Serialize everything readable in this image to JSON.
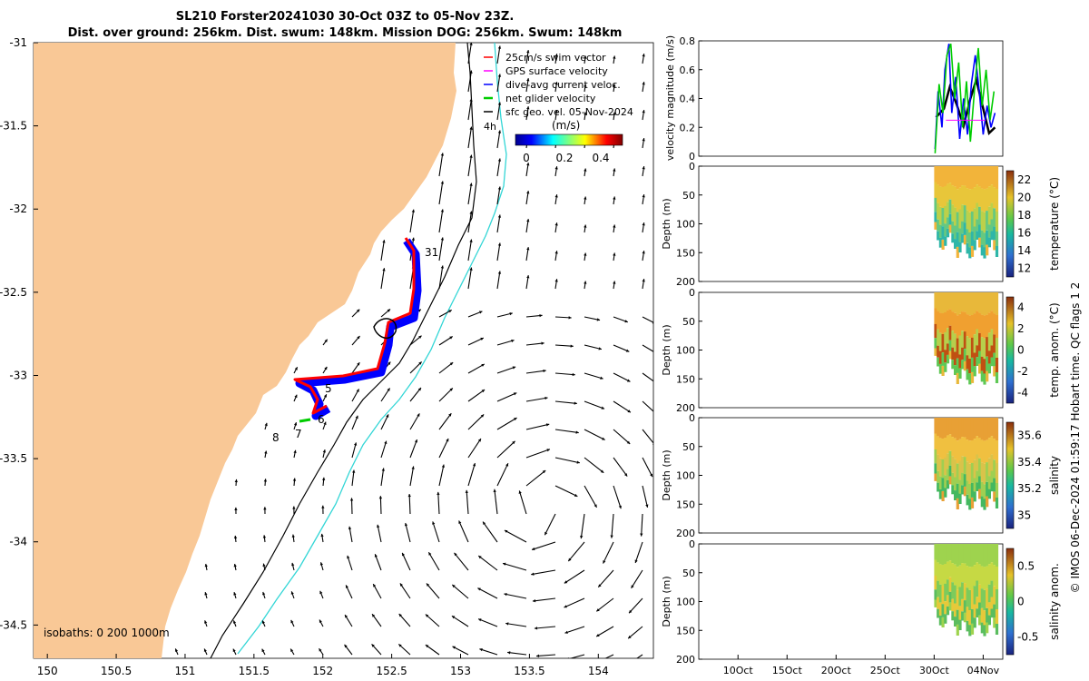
{
  "header": {
    "line1": "SL210 Forster20241030 30-Oct 03Z to 05-Nov 23Z.",
    "line2": "Dist. over ground: 256km. Dist. swum: 148km. Mission DOG: 256km. Swum: 148km"
  },
  "map": {
    "x_ticks": [
      "150",
      "150.5",
      "151",
      "151.5",
      "152",
      "152.5",
      "153",
      "153.5",
      "154"
    ],
    "y_ticks": [
      "-31",
      "-31.5",
      "-32",
      "-32.5",
      "-33",
      "-33.5",
      "-34",
      "-34.5"
    ],
    "xlim": [
      149.9,
      154.4
    ],
    "ylim": [
      -34.7,
      -31
    ],
    "legend": [
      {
        "label": "25cm/s swim vector",
        "color": "#ff0000"
      },
      {
        "label": "GPS surface velocity",
        "color": "#ff00ff"
      },
      {
        "label": "dive-avg current veloc.",
        "color": "#0000ff"
      },
      {
        "label": "net glider velocity",
        "color": "#00cc00"
      },
      {
        "label": "sfc geo. vel. 05-Nov-2024",
        "color": "#000000"
      }
    ],
    "colorbar_label": "(m/s)",
    "colorbar_ticks": [
      "0",
      "0.2",
      "0.4"
    ],
    "isobaths_label": "isobaths: 0   200  1000m",
    "annotations": [
      "4h",
      "31",
      "5",
      "6",
      "7",
      "8"
    ],
    "land_color": "#f9c896",
    "isobath_200_color": "#000000",
    "isobath_1000_color": "#33d6d6"
  },
  "chart_data": [
    {
      "type": "line",
      "title": "",
      "ylabel": "velocity magnitude (m/s)",
      "ylim": [
        0,
        0.8
      ],
      "y_ticks": [
        "0",
        "0.2",
        "0.4",
        "0.6",
        "0.8"
      ],
      "series": [
        {
          "color": "#000000",
          "x": [
            30.2,
            31.0,
            31.6,
            32.3,
            33.0,
            33.7,
            34.3,
            35.0,
            35.6,
            36.2
          ],
          "values": [
            0.27,
            0.33,
            0.48,
            0.36,
            0.21,
            0.4,
            0.53,
            0.33,
            0.16,
            0.2
          ]
        },
        {
          "color": "#0000ff",
          "x": [
            30.1,
            30.4,
            30.8,
            31.1,
            31.5,
            31.8,
            32.2,
            32.6,
            33.0,
            33.4,
            33.8,
            34.2,
            34.6,
            35.0,
            35.4,
            35.8,
            36.2
          ],
          "values": [
            0.05,
            0.45,
            0.2,
            0.6,
            0.78,
            0.3,
            0.55,
            0.12,
            0.4,
            0.15,
            0.5,
            0.7,
            0.45,
            0.15,
            0.35,
            0.2,
            0.3
          ]
        },
        {
          "color": "#00cc00",
          "x": [
            30.1,
            30.5,
            30.9,
            31.3,
            31.7,
            32.1,
            32.5,
            32.9,
            33.3,
            33.7,
            34.1,
            34.5,
            34.9,
            35.3,
            35.7,
            36.1
          ],
          "values": [
            0.02,
            0.5,
            0.3,
            0.7,
            0.78,
            0.4,
            0.65,
            0.2,
            0.52,
            0.1,
            0.45,
            0.75,
            0.35,
            0.6,
            0.25,
            0.45
          ]
        }
      ]
    },
    {
      "type": "heatmap",
      "ylabel": "Depth (m)",
      "colorbar_label": "temperature (°C)",
      "colorbar_ticks": [
        "12",
        "14",
        "16",
        "18",
        "20",
        "22"
      ],
      "ylim": [
        200,
        0
      ],
      "y_ticks": [
        "0",
        "50",
        "100",
        "150",
        "200"
      ]
    },
    {
      "type": "heatmap",
      "ylabel": "Depth (m)",
      "colorbar_label": "temp. anom. (°C)",
      "colorbar_ticks": [
        "-4",
        "-2",
        "0",
        "2",
        "4"
      ],
      "ylim": [
        200,
        0
      ],
      "y_ticks": [
        "0",
        "50",
        "100",
        "150",
        "200"
      ]
    },
    {
      "type": "heatmap",
      "ylabel": "Depth (m)",
      "colorbar_label": "salinity",
      "colorbar_ticks": [
        "35",
        "35.2",
        "35.4",
        "35.6"
      ],
      "ylim": [
        200,
        0
      ],
      "y_ticks": [
        "0",
        "50",
        "100",
        "150",
        "200"
      ]
    },
    {
      "type": "heatmap",
      "ylabel": "Depth (m)",
      "colorbar_label": "salinity anom.",
      "colorbar_ticks": [
        "-0.5",
        "0",
        "0.5"
      ],
      "ylim": [
        200,
        0
      ],
      "y_ticks": [
        "0",
        "50",
        "100",
        "150",
        "200"
      ],
      "x_ticks": [
        "10Oct",
        "15Oct",
        "20Oct",
        "25Oct",
        "30Oct",
        "04Nov"
      ]
    }
  ],
  "footer": {
    "credit": "© IMOS 06-Dec-2024 01:59:17 Hobart time. QC flags 1  2"
  }
}
